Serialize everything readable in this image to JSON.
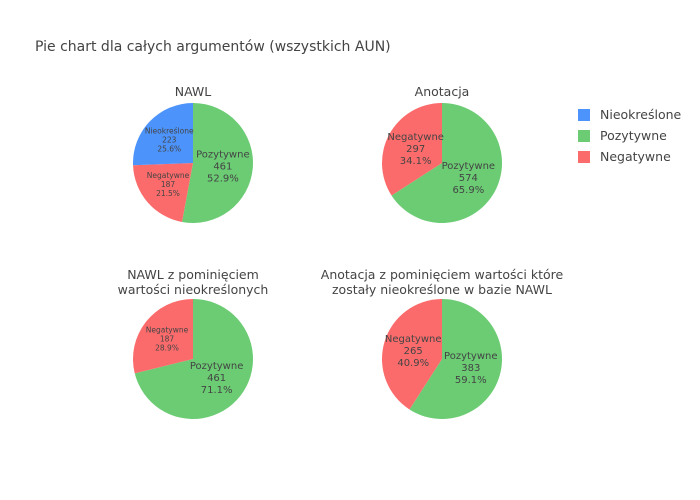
{
  "figure": {
    "title": "Pie chart dla całych argumentów (wszystkich AUN)"
  },
  "legend": {
    "placement": "right",
    "items": [
      {
        "label": "Nieokreślone",
        "color": "#4c93fb"
      },
      {
        "label": "Pozytywne",
        "color": "#6bcc74"
      },
      {
        "label": "Negatywne",
        "color": "#fc6b6b"
      }
    ]
  },
  "chart_data": [
    {
      "type": "pie",
      "title": [
        "NAWL"
      ],
      "slices": [
        {
          "label": "Pozytywne",
          "value": 461,
          "percent": "52.9%",
          "color": "#6bcc74"
        },
        {
          "label": "Negatywne",
          "value": 187,
          "percent": "21.5%",
          "color": "#fc6b6b"
        },
        {
          "label": "Nieokreślone",
          "value": 223,
          "percent": "25.6%",
          "color": "#4c93fb"
        }
      ]
    },
    {
      "type": "pie",
      "title": [
        "Anotacja"
      ],
      "slices": [
        {
          "label": "Pozytywne",
          "value": 574,
          "percent": "65.9%",
          "color": "#6bcc74"
        },
        {
          "label": "Negatywne",
          "value": 297,
          "percent": "34.1%",
          "color": "#fc6b6b"
        }
      ]
    },
    {
      "type": "pie",
      "title": [
        "NAWL z pominięciem",
        "wartości nieokreślonych"
      ],
      "slices": [
        {
          "label": "Pozytywne",
          "value": 461,
          "percent": "71.1%",
          "color": "#6bcc74"
        },
        {
          "label": "Negatywne",
          "value": 187,
          "percent": "28.9%",
          "color": "#fc6b6b"
        }
      ]
    },
    {
      "type": "pie",
      "title": [
        "Anotacja z pominięciem wartości które",
        "zostały nieokreślone w bazie NAWL"
      ],
      "slices": [
        {
          "label": "Pozytywne",
          "value": 383,
          "percent": "59.1%",
          "color": "#6bcc74"
        },
        {
          "label": "Negatywne",
          "value": 265,
          "percent": "40.9%",
          "color": "#fc6b6b"
        }
      ]
    }
  ]
}
